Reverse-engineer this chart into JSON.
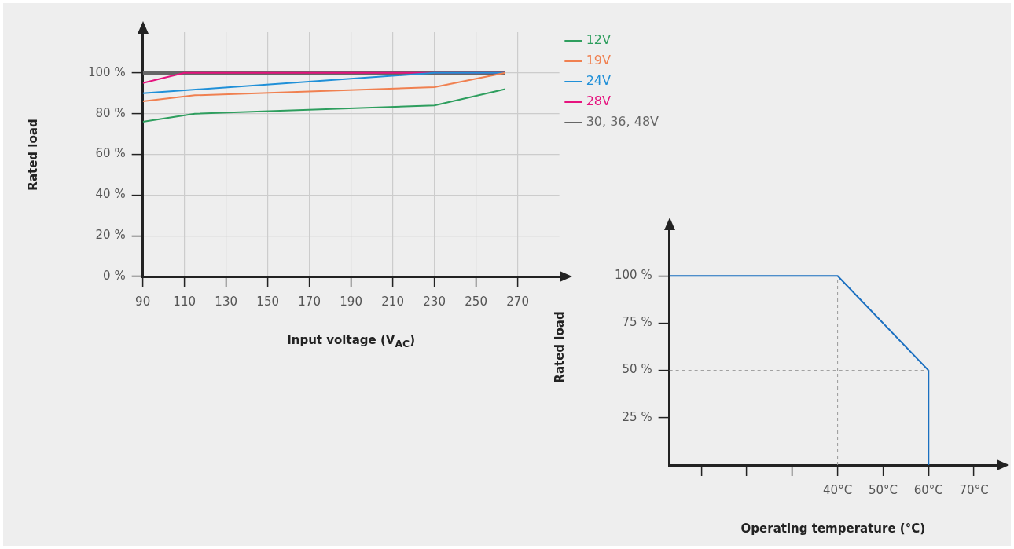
{
  "chart_data": [
    {
      "type": "line",
      "xlabel": "Input voltage (V$_{AC}$)",
      "ylabel": "Rated load",
      "xlim": [
        90,
        290
      ],
      "xticks": [
        90,
        110,
        130,
        150,
        170,
        190,
        210,
        230,
        250,
        270
      ],
      "ylim": [
        0,
        120
      ],
      "yticks": [
        {
          "value": 0,
          "label": "0 %"
        },
        {
          "value": 20,
          "label": "20 %"
        },
        {
          "value": 40,
          "label": "40 %"
        },
        {
          "value": 60,
          "label": "60 %"
        },
        {
          "value": 80,
          "label": "80 %"
        },
        {
          "value": 100,
          "label": "100 %"
        }
      ],
      "grid": true,
      "legend": "top right",
      "marker": "none",
      "line_style": "solid",
      "series": [
        {
          "name": "12V",
          "color": "#2e9e5e",
          "x": [
            90,
            115,
            230,
            264
          ],
          "values": [
            76,
            80,
            84,
            92
          ]
        },
        {
          "name": "19V",
          "color": "#f08050",
          "x": [
            90,
            115,
            230,
            264
          ],
          "values": [
            86,
            89,
            93,
            100
          ]
        },
        {
          "name": "24V",
          "color": "#2090d8",
          "x": [
            90,
            230,
            264
          ],
          "values": [
            90,
            100,
            100
          ]
        },
        {
          "name": "28V",
          "color": "#e6137e",
          "x": [
            90,
            110,
            264
          ],
          "values": [
            95,
            100,
            100
          ]
        },
        {
          "name": "30, 36, 48V",
          "color": "#666666",
          "x": [
            90,
            264
          ],
          "values": [
            100,
            100
          ]
        }
      ]
    },
    {
      "type": "line",
      "xlabel": "Operating temperature (°C)",
      "ylabel": "Rated load",
      "xlim": [
        3,
        75
      ],
      "xticks": [
        {
          "value": 10,
          "label": null
        },
        {
          "value": 20,
          "label": null
        },
        {
          "value": 30,
          "label": null
        },
        {
          "value": 40,
          "label": "40°C"
        },
        {
          "value": 50,
          "label": "50°C"
        },
        {
          "value": 60,
          "label": "60°C"
        },
        {
          "value": 70,
          "label": "70°C"
        }
      ],
      "ylim": [
        0,
        125
      ],
      "yticks": [
        {
          "value": 25,
          "label": "25 %"
        },
        {
          "value": 50,
          "label": "50 %"
        },
        {
          "value": 75,
          "label": "75 %"
        },
        {
          "value": 100,
          "label": "100 %"
        }
      ],
      "grid": false,
      "legend": false,
      "marker": "none",
      "line_style": "solid",
      "ref_lines": [
        {
          "axis": "x",
          "value": 40,
          "color": "#999999",
          "line_style": "dashed"
        },
        {
          "axis": "y",
          "value": 50,
          "color": "#999999",
          "line_style": "dashed"
        }
      ],
      "series": [
        {
          "color": "#1a6fc0",
          "x": [
            3,
            40,
            60,
            60
          ],
          "values": [
            100,
            100,
            50,
            0
          ]
        }
      ]
    }
  ]
}
